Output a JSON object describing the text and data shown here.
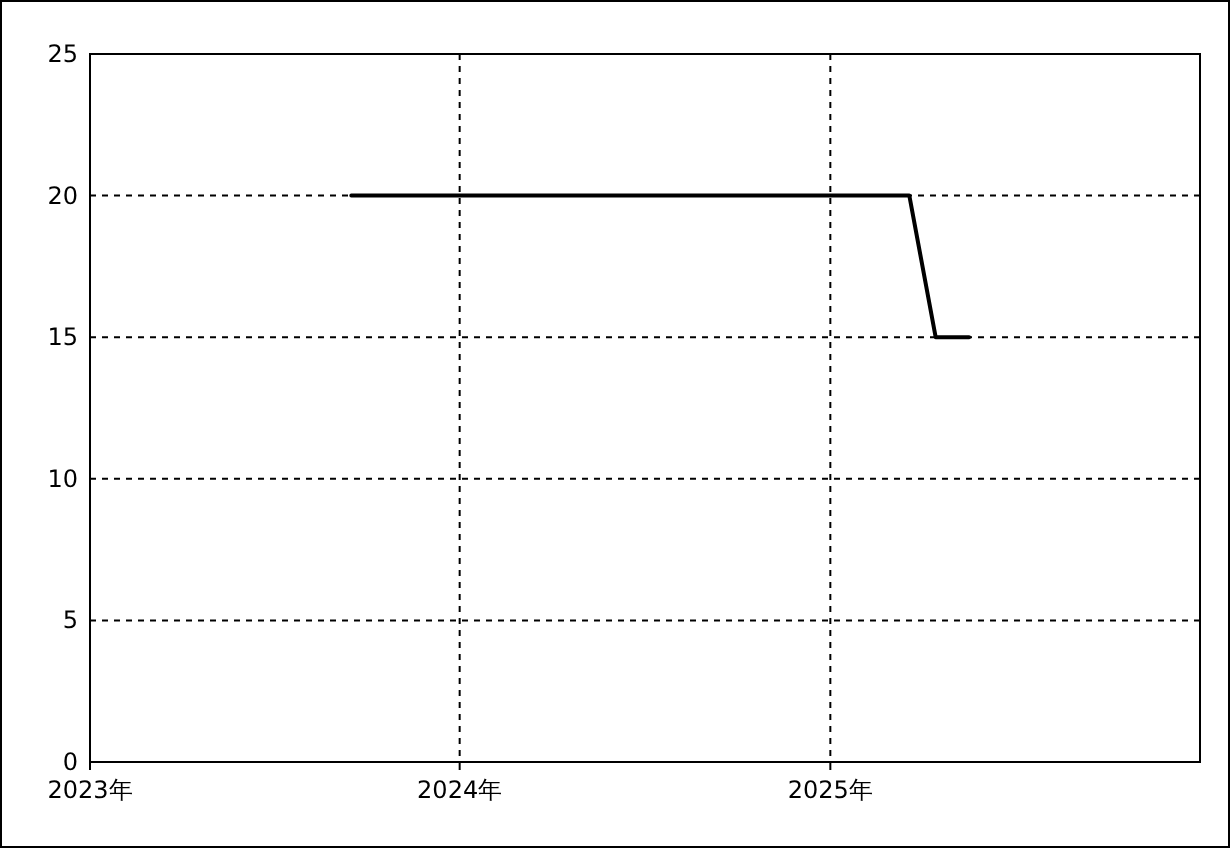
{
  "chart_data": {
    "type": "line",
    "x": [
      "2023-09-16",
      "2025-03-20",
      "2025-04-15",
      "2025-05-18"
    ],
    "series": [
      {
        "color": "#000000",
        "values": [
          20,
          20,
          15,
          15
        ]
      }
    ],
    "xlim": [
      "2023",
      "2026"
    ],
    "xticks": [
      {
        "value": "2023",
        "label": "2023年"
      },
      {
        "value": "2024",
        "label": "2024年"
      },
      {
        "value": "2025",
        "label": "2025年"
      }
    ],
    "ylim": [
      0,
      25
    ],
    "yticks": [
      0,
      5,
      10,
      15,
      20,
      25
    ],
    "grid": true,
    "line_style": "solid",
    "marker": "none"
  }
}
